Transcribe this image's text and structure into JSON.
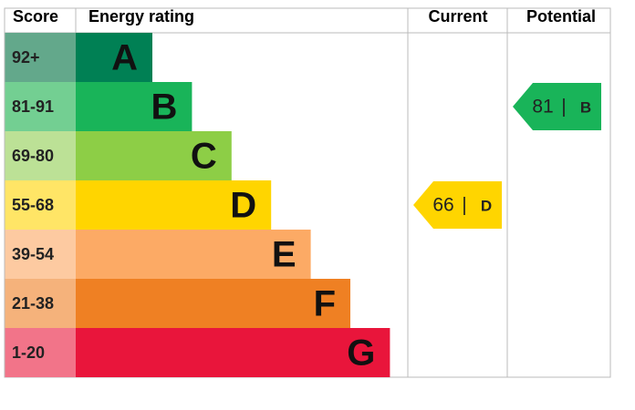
{
  "header": {
    "score": "Score",
    "rating": "Energy rating",
    "current": "Current",
    "potential": "Potential"
  },
  "bands": [
    {
      "score": "92+",
      "letter": "A",
      "color": "#008054",
      "light": "#63a88b"
    },
    {
      "score": "81-91",
      "letter": "B",
      "color": "#19b459",
      "light": "#73cf92"
    },
    {
      "score": "69-80",
      "letter": "C",
      "color": "#8dce46",
      "light": "#bce196"
    },
    {
      "score": "55-68",
      "letter": "D",
      "color": "#ffd500",
      "light": "#ffe566"
    },
    {
      "score": "39-54",
      "letter": "E",
      "color": "#fcaa65",
      "light": "#fdcaa1"
    },
    {
      "score": "21-38",
      "letter": "F",
      "color": "#ef8023",
      "light": "#f5b27b"
    },
    {
      "score": "1-20",
      "letter": "G",
      "color": "#e9153b",
      "light": "#f27489"
    }
  ],
  "current": {
    "value": 66,
    "separator": "|",
    "letter": "D",
    "color": "#ffd500"
  },
  "potential": {
    "value": 81,
    "separator": "|",
    "letter": "B",
    "color": "#19b459"
  }
}
